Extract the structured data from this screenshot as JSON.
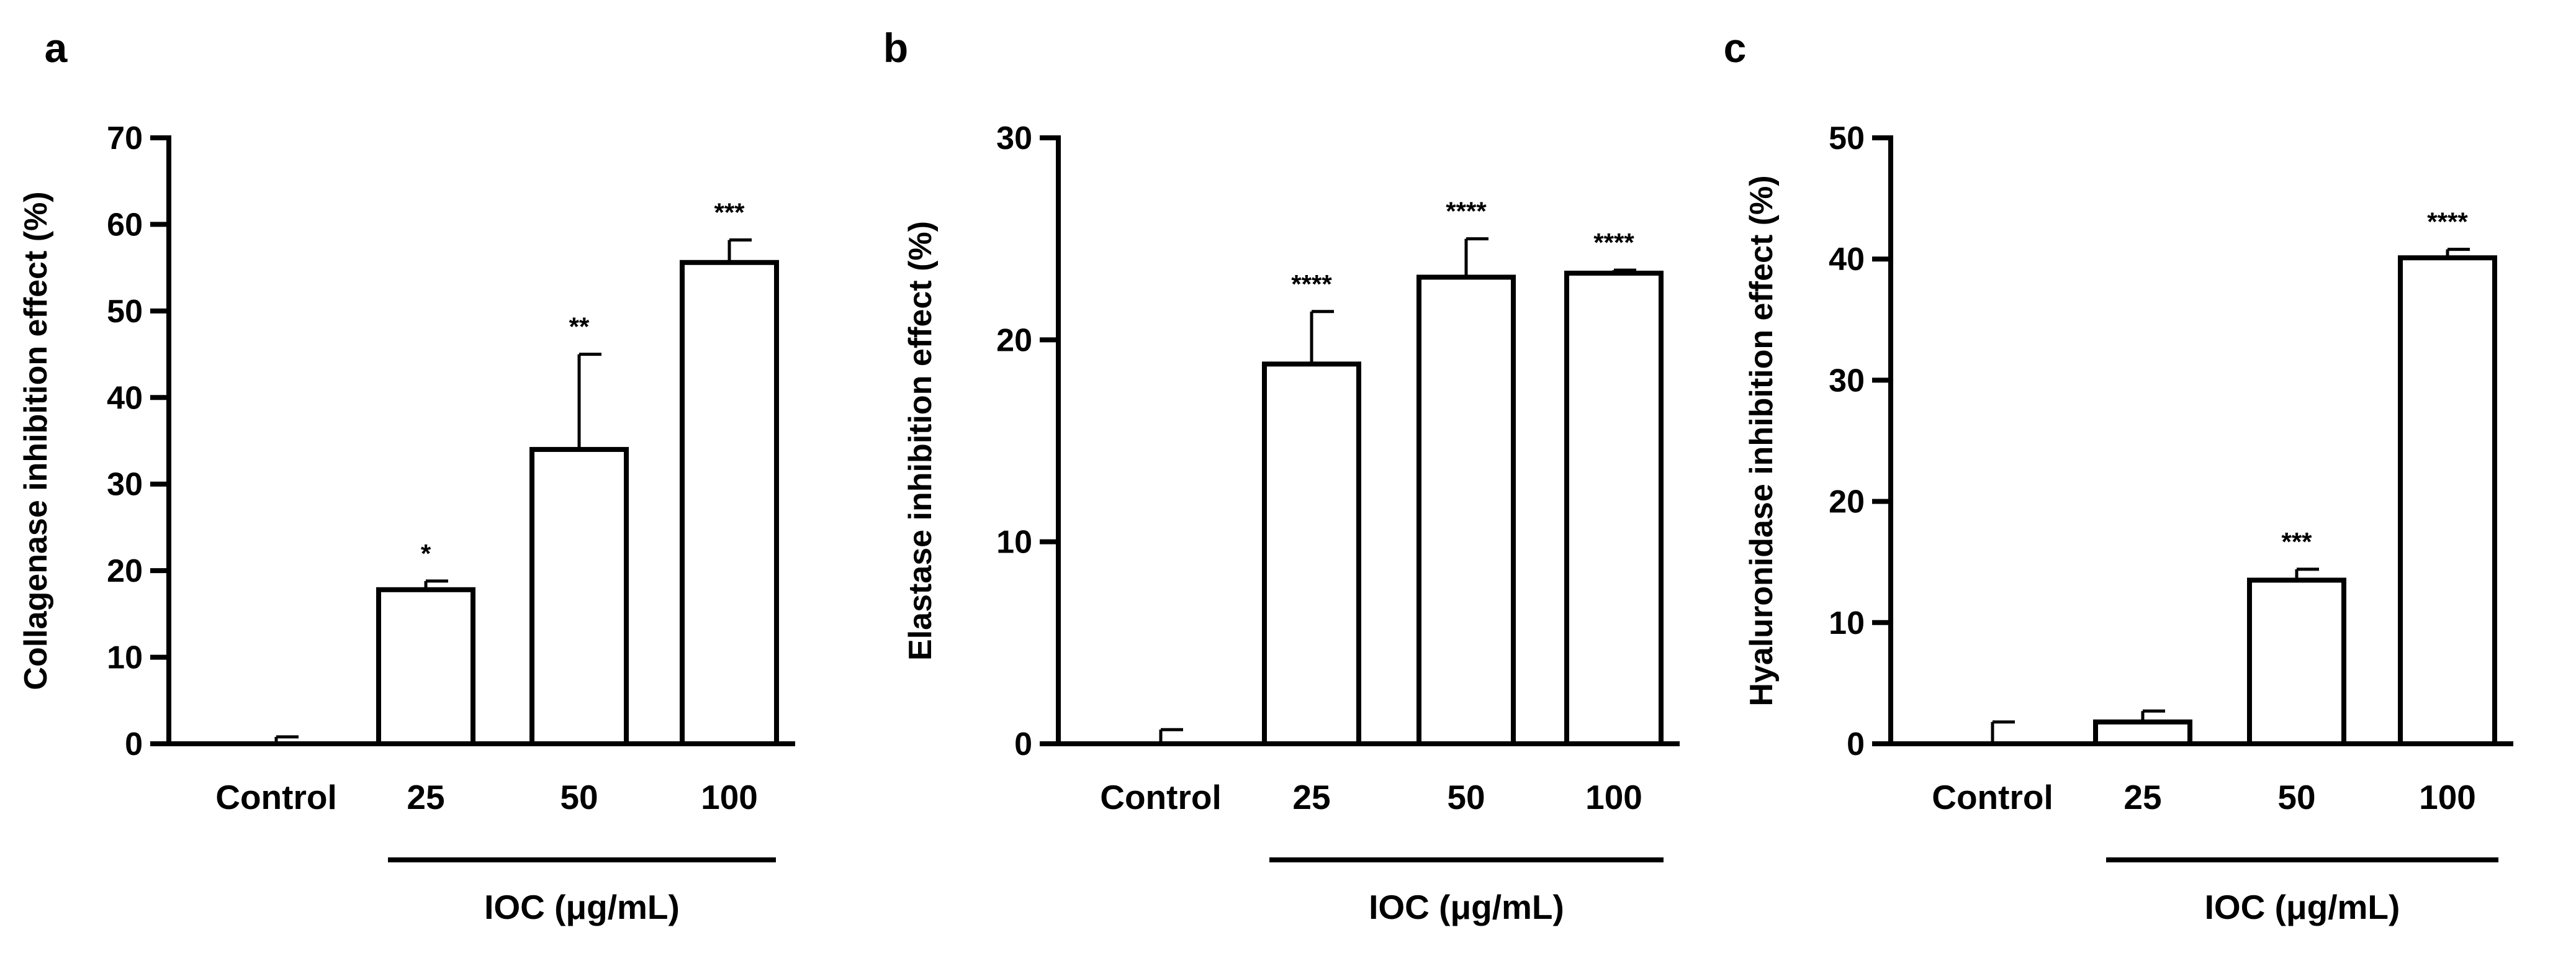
{
  "chart_data": [
    {
      "panel": "a",
      "type": "bar",
      "categories": [
        "Control",
        "25",
        "50",
        "100"
      ],
      "values": [
        0,
        17.8,
        34.0,
        55.6
      ],
      "errors": [
        0.8,
        1.0,
        11.0,
        2.6
      ],
      "significance": [
        "",
        "*",
        "**",
        "***"
      ],
      "ylabel": "Collagenase inhibition effect (%)",
      "xlabel": "IOC (μg/mL)",
      "ylim": [
        0,
        70
      ],
      "yticks": [
        "0",
        "10",
        "20",
        "30",
        "40",
        "50",
        "60",
        "70"
      ]
    },
    {
      "panel": "b",
      "type": "bar",
      "categories": [
        "Control",
        "25",
        "50",
        "100"
      ],
      "values": [
        0,
        18.8,
        23.1,
        23.3
      ],
      "errors": [
        0.7,
        2.6,
        1.9,
        0.15
      ],
      "significance": [
        "",
        "****",
        "****",
        "****"
      ],
      "ylabel": "Elastase inhibition effect (%)",
      "xlabel": "IOC (μg/mL)",
      "ylim": [
        0,
        30
      ],
      "yticks": [
        "0",
        "10",
        "20",
        "30"
      ]
    },
    {
      "panel": "c",
      "type": "bar",
      "categories": [
        "Control",
        "25",
        "50",
        "100"
      ],
      "values": [
        0,
        1.8,
        13.5,
        40.1
      ],
      "errors": [
        1.8,
        0.9,
        0.9,
        0.7
      ],
      "significance": [
        "",
        "",
        "***",
        "****"
      ],
      "ylabel": "Hyaluronidase inhibition effect (%)",
      "xlabel": "IOC (μg/mL)",
      "ylim": [
        0,
        50
      ],
      "yticks": [
        "0",
        "10",
        "20",
        "30",
        "40",
        "50"
      ]
    }
  ]
}
